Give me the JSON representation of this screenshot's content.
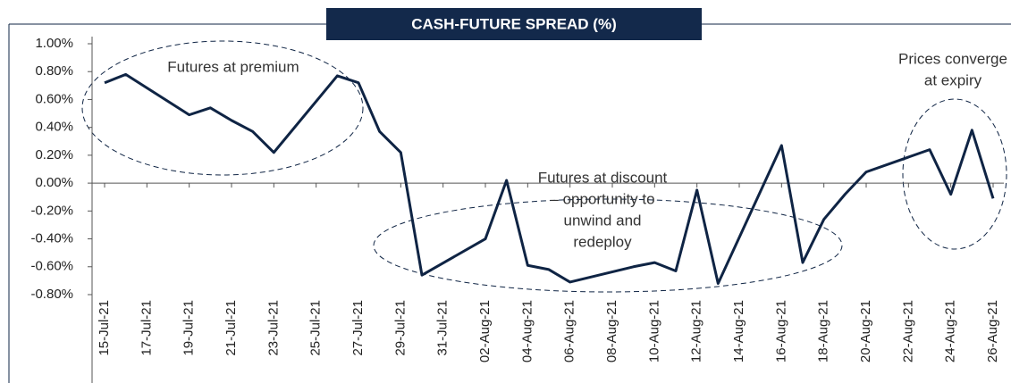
{
  "chart_data": {
    "type": "line",
    "title": "CASH-FUTURE SPREAD (%)",
    "x": [
      "2021-07-15",
      "2021-07-16",
      "2021-07-19",
      "2021-07-20",
      "2021-07-21",
      "2021-07-22",
      "2021-07-23",
      "2021-07-26",
      "2021-07-27",
      "2021-07-28",
      "2021-07-29",
      "2021-07-30",
      "2021-08-02",
      "2021-08-03",
      "2021-08-04",
      "2021-08-05",
      "2021-08-06",
      "2021-08-09",
      "2021-08-10",
      "2021-08-11",
      "2021-08-12",
      "2021-08-13",
      "2021-08-16",
      "2021-08-17",
      "2021-08-18",
      "2021-08-19",
      "2021-08-20",
      "2021-08-23",
      "2021-08-24",
      "2021-08-25",
      "2021-08-26"
    ],
    "series": [
      {
        "name": "Cash-future spread",
        "color": "#0f2444",
        "values": [
          0.72,
          0.78,
          0.49,
          0.54,
          0.45,
          0.37,
          0.22,
          0.77,
          0.72,
          0.37,
          0.22,
          -0.66,
          -0.4,
          0.02,
          -0.59,
          -0.62,
          -0.71,
          -0.6,
          -0.57,
          -0.63,
          -0.05,
          -0.72,
          0.27,
          -0.57,
          -0.26,
          -0.08,
          0.08,
          0.24,
          -0.08,
          0.38,
          -0.11
        ]
      }
    ],
    "xlim": [
      "2021-07-15",
      "2021-08-26"
    ],
    "xticks": [
      {
        "value": "2021-07-15",
        "label": "15-Jul-21"
      },
      {
        "value": "2021-07-17",
        "label": "17-Jul-21"
      },
      {
        "value": "2021-07-19",
        "label": "19-Jul-21"
      },
      {
        "value": "2021-07-21",
        "label": "21-Jul-21"
      },
      {
        "value": "2021-07-23",
        "label": "23-Jul-21"
      },
      {
        "value": "2021-07-25",
        "label": "25-Jul-21"
      },
      {
        "value": "2021-07-27",
        "label": "27-Jul-21"
      },
      {
        "value": "2021-07-29",
        "label": "29-Jul-21"
      },
      {
        "value": "2021-07-31",
        "label": "31-Jul-21"
      },
      {
        "value": "2021-08-02",
        "label": "02-Aug-21"
      },
      {
        "value": "2021-08-04",
        "label": "04-Aug-21"
      },
      {
        "value": "2021-08-06",
        "label": "06-Aug-21"
      },
      {
        "value": "2021-08-08",
        "label": "08-Aug-21"
      },
      {
        "value": "2021-08-10",
        "label": "10-Aug-21"
      },
      {
        "value": "2021-08-12",
        "label": "12-Aug-21"
      },
      {
        "value": "2021-08-14",
        "label": "14-Aug-21"
      },
      {
        "value": "2021-08-16",
        "label": "16-Aug-21"
      },
      {
        "value": "2021-08-18",
        "label": "18-Aug-21"
      },
      {
        "value": "2021-08-20",
        "label": "20-Aug-21"
      },
      {
        "value": "2021-08-22",
        "label": "22-Aug-21"
      },
      {
        "value": "2021-08-24",
        "label": "24-Aug-21"
      },
      {
        "value": "2021-08-26",
        "label": "26-Aug-21"
      }
    ],
    "ylim": [
      -0.8,
      1.0
    ],
    "yticks": [
      {
        "value": 1.0,
        "label": "1.00%"
      },
      {
        "value": 0.8,
        "label": "0.80%"
      },
      {
        "value": 0.6,
        "label": "0.60%"
      },
      {
        "value": 0.4,
        "label": "0.40%"
      },
      {
        "value": 0.2,
        "label": "0.20%"
      },
      {
        "value": 0,
        "label": "0.00%"
      },
      {
        "value": -0.2,
        "label": "-0.20%"
      },
      {
        "value": -0.4,
        "label": "-0.40%"
      },
      {
        "value": -0.6,
        "label": "-0.60%"
      },
      {
        "value": -0.8,
        "label": "-0.80%"
      }
    ],
    "annotations": [
      {
        "lines": [
          "Futures at premium"
        ]
      },
      {
        "lines": [
          "Futures at discount",
          "– opportunity to",
          "unwind and",
          "redeploy"
        ]
      },
      {
        "lines": [
          "Prices converge",
          "at expiry"
        ]
      }
    ]
  }
}
